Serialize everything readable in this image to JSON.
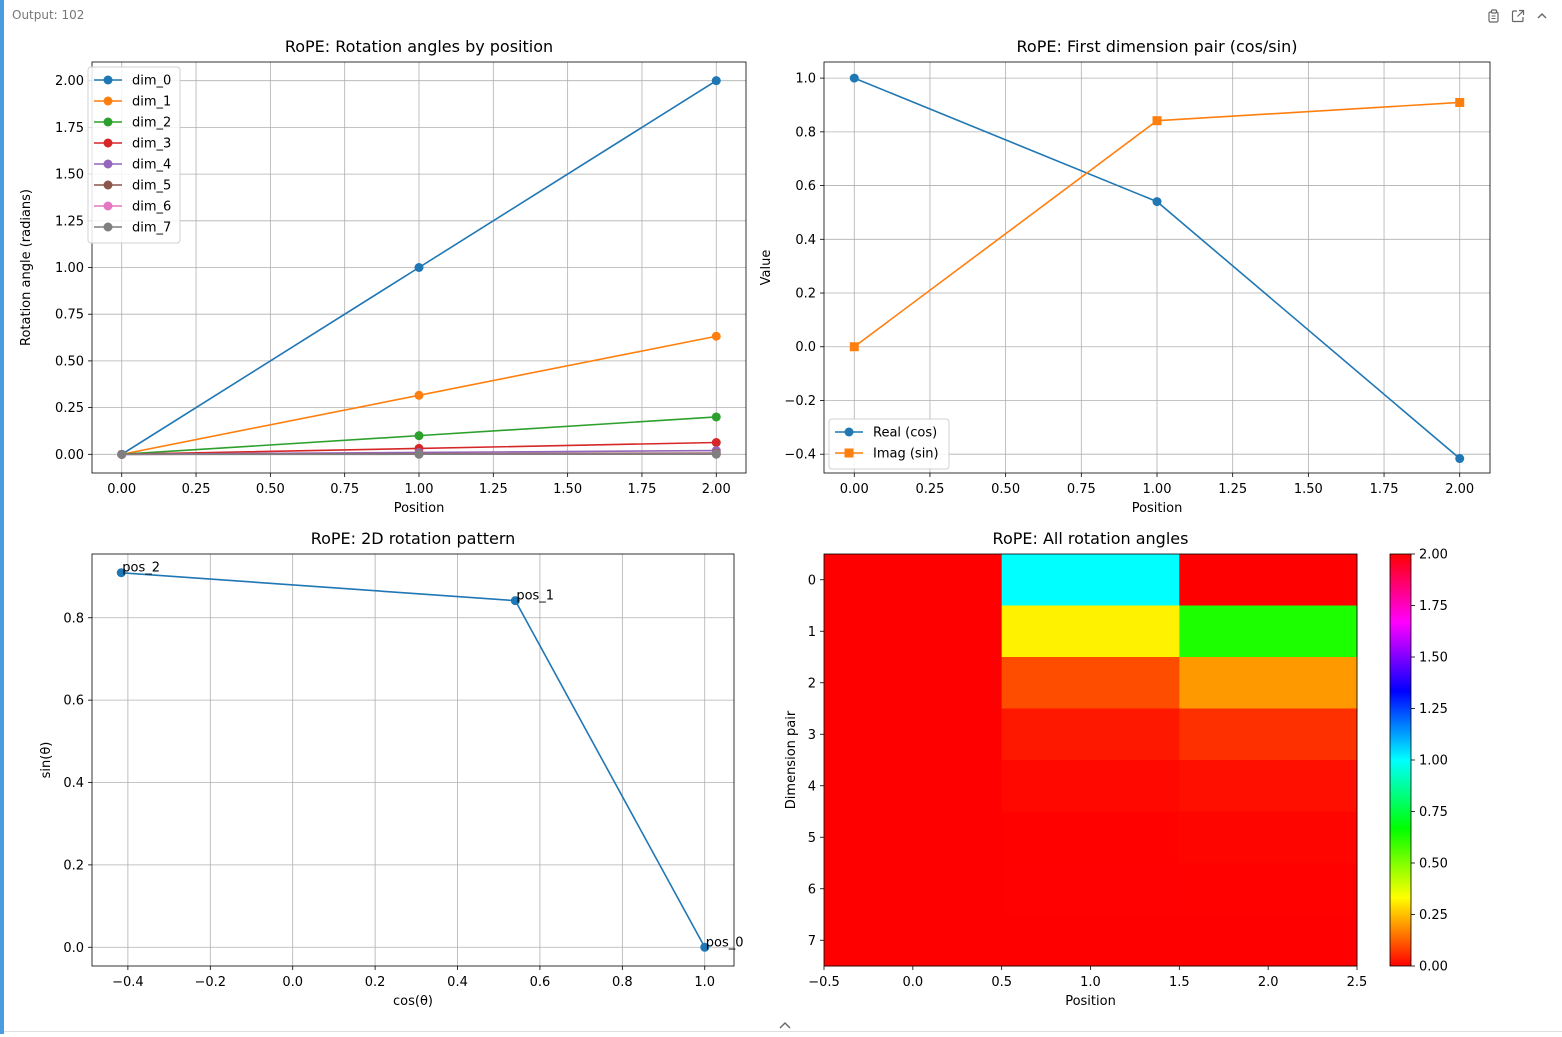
{
  "output": {
    "label": "Output: 102",
    "tools": [
      "copy-icon",
      "open-external-icon",
      "collapse-up-icon"
    ],
    "footer_icon": "expand-toggle-icon"
  },
  "chart_data": [
    {
      "type": "line",
      "title": "RoPE: Rotation angles by position",
      "xlabel": "Position",
      "ylabel": "Rotation angle (radians)",
      "xlim": [
        -0.1,
        2.1
      ],
      "ylim": [
        -0.1,
        2.1
      ],
      "xticks": [
        0.0,
        0.25,
        0.5,
        0.75,
        1.0,
        1.25,
        1.5,
        1.75,
        2.0
      ],
      "yticks": [
        0.0,
        0.25,
        0.5,
        0.75,
        1.0,
        1.25,
        1.5,
        1.75,
        2.0
      ],
      "xtick_decimals": 2,
      "ytick_decimals": 2,
      "grid": true,
      "legend": "top-left",
      "marker": "circle",
      "x": [
        0,
        1,
        2
      ],
      "series": [
        {
          "name": "dim_0",
          "color": "#1f77b4",
          "values": [
            0,
            1.0,
            2.0
          ]
        },
        {
          "name": "dim_1",
          "color": "#ff7f0e",
          "values": [
            0,
            0.316,
            0.632
          ]
        },
        {
          "name": "dim_2",
          "color": "#2ca02c",
          "values": [
            0,
            0.1,
            0.2
          ]
        },
        {
          "name": "dim_3",
          "color": "#d62728",
          "values": [
            0,
            0.0316,
            0.0632
          ]
        },
        {
          "name": "dim_4",
          "color": "#9467bd",
          "values": [
            0,
            0.01,
            0.02
          ]
        },
        {
          "name": "dim_5",
          "color": "#8c564b",
          "values": [
            0,
            0.00316,
            0.00632
          ]
        },
        {
          "name": "dim_6",
          "color": "#e377c2",
          "values": [
            0,
            0.001,
            0.002
          ]
        },
        {
          "name": "dim_7",
          "color": "#7f7f7f",
          "values": [
            0,
            0.000316,
            0.000632
          ]
        }
      ]
    },
    {
      "type": "line",
      "title": "RoPE: First dimension pair (cos/sin)",
      "xlabel": "Position",
      "ylabel": "Value",
      "xlim": [
        -0.1,
        2.1
      ],
      "ylim": [
        -0.47,
        1.06
      ],
      "xticks": [
        0.0,
        0.25,
        0.5,
        0.75,
        1.0,
        1.25,
        1.5,
        1.75,
        2.0
      ],
      "yticks": [
        -0.4,
        -0.2,
        0.0,
        0.2,
        0.4,
        0.6,
        0.8,
        1.0
      ],
      "xtick_decimals": 2,
      "ytick_decimals": 1,
      "grid": true,
      "legend": "bottom-left",
      "x": [
        0,
        1,
        2
      ],
      "series": [
        {
          "name": "Real (cos)",
          "color": "#1f77b4",
          "marker": "circle",
          "values": [
            1.0,
            0.5403,
            -0.4161
          ]
        },
        {
          "name": "Imag (sin)",
          "color": "#ff7f0e",
          "marker": "square",
          "values": [
            0.0,
            0.8415,
            0.9093
          ]
        }
      ]
    },
    {
      "type": "scatter",
      "title": "RoPE: 2D rotation pattern",
      "xlabel": "cos(θ)",
      "ylabel": "sin(θ)",
      "xlim": [
        -0.4871,
        1.071
      ],
      "ylim": [
        -0.0455,
        0.9548
      ],
      "xticks": [
        -0.4,
        -0.2,
        0.0,
        0.2,
        0.4,
        0.6,
        0.8,
        1.0
      ],
      "yticks": [
        0.0,
        0.2,
        0.4,
        0.6,
        0.8
      ],
      "xtick_decimals": 1,
      "ytick_decimals": 1,
      "grid": true,
      "color": "#1f77b4",
      "connected": true,
      "points": [
        {
          "label": "pos_0",
          "x": 1.0,
          "y": 0.0
        },
        {
          "label": "pos_1",
          "x": 0.5403,
          "y": 0.8415
        },
        {
          "label": "pos_2",
          "x": -0.4161,
          "y": 0.9093
        }
      ]
    },
    {
      "type": "heatmap",
      "title": "RoPE: All rotation angles",
      "xlabel": "Position",
      "ylabel": "Dimension pair",
      "xlim": [
        -0.5,
        2.5
      ],
      "xticks": [
        -0.5,
        0.0,
        0.5,
        1.0,
        1.5,
        2.0,
        2.5
      ],
      "yticks": [
        0,
        1,
        2,
        3,
        4,
        5,
        6,
        7
      ],
      "xtick_decimals": 1,
      "colormap": "hsv",
      "vmin": 0.0,
      "vmax": 2.0,
      "colorbar_ticks": [
        0.0,
        0.25,
        0.5,
        0.75,
        1.0,
        1.25,
        1.5,
        1.75,
        2.0
      ],
      "colorbar_decimals": 2,
      "values": [
        [
          0,
          1.0,
          2.0
        ],
        [
          0,
          0.316,
          0.632
        ],
        [
          0,
          0.1,
          0.2
        ],
        [
          0,
          0.0316,
          0.0632
        ],
        [
          0,
          0.01,
          0.02
        ],
        [
          0,
          0.00316,
          0.00632
        ],
        [
          0,
          0.001,
          0.002
        ],
        [
          0,
          0.000316,
          0.000632
        ]
      ]
    }
  ]
}
